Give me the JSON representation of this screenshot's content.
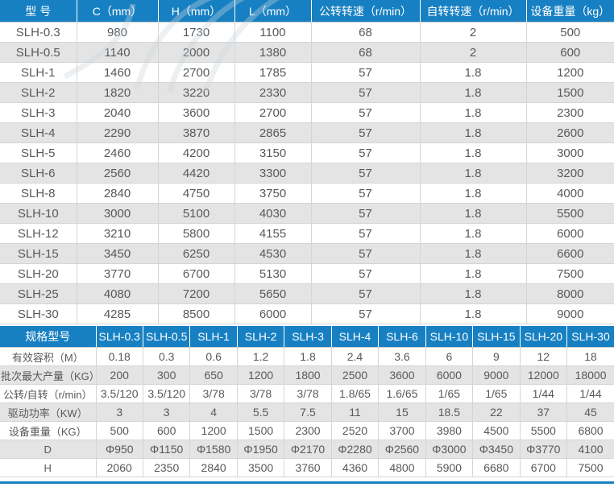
{
  "colors": {
    "header_blue": "#1780c2",
    "stripe_gray": "#e4e4e4",
    "grid_line": "#d5d5d5",
    "text": "#58595b",
    "bottom_rule_blue": "#1780c2"
  },
  "table1": {
    "headers": [
      "型 号",
      "C（mm）",
      "H（mm）",
      "L（mm）",
      "公转转速（r/min）",
      "自转转速（r/min）",
      "设备重量（kg）"
    ],
    "rows": [
      [
        "SLH-0.3",
        "980",
        "1730",
        "1100",
        "68",
        "2",
        "500"
      ],
      [
        "SLH-0.5",
        "1140",
        "2000",
        "1380",
        "68",
        "2",
        "600"
      ],
      [
        "SLH-1",
        "1460",
        "2700",
        "1785",
        "57",
        "1.8",
        "1200"
      ],
      [
        "SLH-2",
        "1820",
        "3220",
        "2330",
        "57",
        "1.8",
        "1500"
      ],
      [
        "SLH-3",
        "2040",
        "3600",
        "2700",
        "57",
        "1.8",
        "2300"
      ],
      [
        "SLH-4",
        "2290",
        "3870",
        "2865",
        "57",
        "1.8",
        "2600"
      ],
      [
        "SLH-5",
        "2460",
        "4200",
        "3150",
        "57",
        "1.8",
        "3000"
      ],
      [
        "SLH-6",
        "2560",
        "4420",
        "3300",
        "57",
        "1.8",
        "3200"
      ],
      [
        "SLH-8",
        "2840",
        "4750",
        "3750",
        "57",
        "1.8",
        "4000"
      ],
      [
        "SLH-10",
        "3000",
        "5100",
        "4030",
        "57",
        "1.8",
        "5500"
      ],
      [
        "SLH-12",
        "3210",
        "5800",
        "4155",
        "57",
        "1.8",
        "6000"
      ],
      [
        "SLH-15",
        "3450",
        "6250",
        "4530",
        "57",
        "1.8",
        "6600"
      ],
      [
        "SLH-20",
        "3770",
        "6700",
        "5130",
        "57",
        "1.8",
        "7500"
      ],
      [
        "SLH-25",
        "4080",
        "7200",
        "5650",
        "57",
        "1.8",
        "8000"
      ],
      [
        "SLH-30",
        "4285",
        "8500",
        "6000",
        "57",
        "1.8",
        "9000"
      ]
    ]
  },
  "table2": {
    "corner": "规格型号",
    "models": [
      "SLH-0.3",
      "SLH-0.5",
      "SLH-1",
      "SLH-2",
      "SLH-3",
      "SLH-4",
      "SLH-6",
      "SLH-10",
      "SLH-15",
      "SLH-20",
      "SLH-30"
    ],
    "rows": [
      {
        "label": "有效容积（M）",
        "values": [
          "0.18",
          "0.3",
          "0.6",
          "1.2",
          "1.8",
          "2.4",
          "3.6",
          "6",
          "9",
          "12",
          "18"
        ]
      },
      {
        "label": "批次最大产量（KG）",
        "values": [
          "200",
          "300",
          "650",
          "1200",
          "1800",
          "2500",
          "3600",
          "6000",
          "9000",
          "12000",
          "18000"
        ]
      },
      {
        "label": "公转/自转（r/min）",
        "values": [
          "3.5/120",
          "3.5/120",
          "3/78",
          "3/78",
          "3/78",
          "1.8/65",
          "1.6/65",
          "1/65",
          "1/65",
          "1/44",
          "1/44"
        ]
      },
      {
        "label": "驱动功率（KW）",
        "values": [
          "3",
          "3",
          "4",
          "5.5",
          "7.5",
          "11",
          "15",
          "18.5",
          "22",
          "37",
          "45"
        ]
      },
      {
        "label": "设备重量（KG）",
        "values": [
          "500",
          "600",
          "1200",
          "1500",
          "2300",
          "2520",
          "3700",
          "3980",
          "4500",
          "5500",
          "6800"
        ]
      },
      {
        "label": "D",
        "values": [
          "Φ950",
          "Φ1150",
          "Φ1580",
          "Φ1950",
          "Φ2170",
          "Φ2280",
          "Φ2560",
          "Φ3000",
          "Φ3450",
          "Φ3770",
          "4100"
        ]
      },
      {
        "label": "H",
        "values": [
          "2060",
          "2350",
          "2840",
          "3500",
          "3760",
          "4360",
          "4800",
          "5900",
          "6680",
          "6700",
          "7500"
        ]
      }
    ]
  }
}
